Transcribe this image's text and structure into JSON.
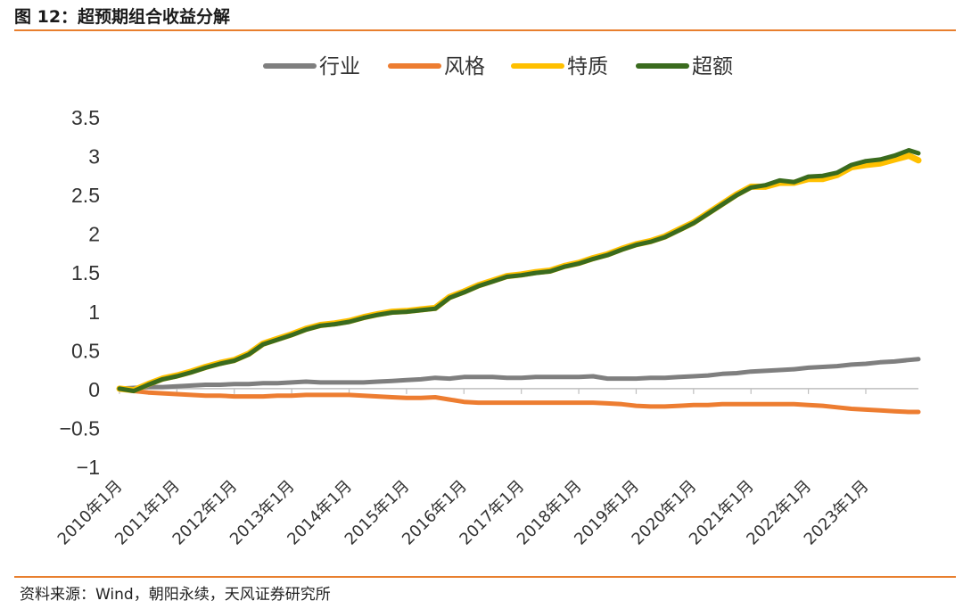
{
  "figure": {
    "title": "图 12：超预期组合收益分解",
    "source": "资料来源：Wind，朝阳永续，天风证券研究所"
  },
  "colors": {
    "accent_rule": "#e87f2e",
    "行业": "#7f7f7f",
    "风格": "#ed7d31",
    "特质": "#ffc000",
    "超额": "#3a6b1e"
  },
  "chart_data": {
    "type": "line",
    "title": "",
    "xlabel": "",
    "ylabel": "",
    "ylim": [
      -1,
      3.5
    ],
    "yticks": [
      "3.5",
      "3",
      "2.5",
      "2",
      "1.5",
      "1",
      "0.5",
      "0",
      "−0.5",
      "−1"
    ],
    "ytick_values": [
      3.5,
      3,
      2.5,
      2,
      1.5,
      1,
      0.5,
      0,
      -0.5,
      -1
    ],
    "xtick_labels": [
      "2010年1月",
      "2011年1月",
      "2012年1月",
      "2013年1月",
      "2014年1月",
      "2015年1月",
      "2016年1月",
      "2017年1月",
      "2018年1月",
      "2019年1月",
      "2020年1月",
      "2021年1月",
      "2022年1月",
      "2023年1月"
    ],
    "xrange": [
      "2010-01",
      "2023-12"
    ],
    "legend_position": "top",
    "grid": false,
    "x": [
      "2010-01",
      "2010-04",
      "2010-07",
      "2010-10",
      "2011-01",
      "2011-04",
      "2011-07",
      "2011-10",
      "2012-01",
      "2012-04",
      "2012-07",
      "2012-10",
      "2013-01",
      "2013-04",
      "2013-07",
      "2013-10",
      "2014-01",
      "2014-04",
      "2014-07",
      "2014-10",
      "2015-01",
      "2015-04",
      "2015-07",
      "2015-10",
      "2016-01",
      "2016-04",
      "2016-07",
      "2016-10",
      "2017-01",
      "2017-04",
      "2017-07",
      "2017-10",
      "2018-01",
      "2018-04",
      "2018-07",
      "2018-10",
      "2019-01",
      "2019-04",
      "2019-07",
      "2019-10",
      "2020-01",
      "2020-04",
      "2020-07",
      "2020-10",
      "2021-01",
      "2021-04",
      "2021-07",
      "2021-10",
      "2022-01",
      "2022-04",
      "2022-07",
      "2022-10",
      "2023-01",
      "2023-04",
      "2023-07",
      "2023-10",
      "2023-12"
    ],
    "series": [
      {
        "name": "行业",
        "values": [
          0,
          0.01,
          0.02,
          0.02,
          0.03,
          0.04,
          0.05,
          0.05,
          0.06,
          0.06,
          0.07,
          0.07,
          0.08,
          0.09,
          0.08,
          0.08,
          0.08,
          0.08,
          0.09,
          0.1,
          0.11,
          0.12,
          0.14,
          0.13,
          0.15,
          0.15,
          0.15,
          0.14,
          0.14,
          0.15,
          0.15,
          0.15,
          0.15,
          0.16,
          0.13,
          0.13,
          0.13,
          0.14,
          0.14,
          0.15,
          0.16,
          0.17,
          0.19,
          0.2,
          0.22,
          0.23,
          0.24,
          0.25,
          0.27,
          0.28,
          0.29,
          0.31,
          0.32,
          0.34,
          0.35,
          0.37,
          0.38
        ]
      },
      {
        "name": "风格",
        "values": [
          0,
          -0.03,
          -0.05,
          -0.06,
          -0.07,
          -0.08,
          -0.09,
          -0.09,
          -0.1,
          -0.1,
          -0.1,
          -0.09,
          -0.09,
          -0.08,
          -0.08,
          -0.08,
          -0.08,
          -0.09,
          -0.1,
          -0.11,
          -0.12,
          -0.12,
          -0.11,
          -0.14,
          -0.17,
          -0.18,
          -0.18,
          -0.18,
          -0.18,
          -0.18,
          -0.18,
          -0.18,
          -0.18,
          -0.18,
          -0.19,
          -0.2,
          -0.22,
          -0.23,
          -0.23,
          -0.22,
          -0.21,
          -0.21,
          -0.2,
          -0.2,
          -0.2,
          -0.2,
          -0.2,
          -0.2,
          -0.21,
          -0.22,
          -0.24,
          -0.26,
          -0.27,
          -0.28,
          -0.29,
          -0.3,
          -0.3
        ]
      },
      {
        "name": "特质",
        "values": [
          0,
          -0.02,
          0.06,
          0.13,
          0.17,
          0.22,
          0.28,
          0.33,
          0.37,
          0.45,
          0.58,
          0.64,
          0.7,
          0.77,
          0.82,
          0.84,
          0.87,
          0.92,
          0.96,
          0.99,
          1.0,
          1.02,
          1.04,
          1.18,
          1.25,
          1.33,
          1.39,
          1.45,
          1.47,
          1.5,
          1.52,
          1.58,
          1.62,
          1.68,
          1.73,
          1.8,
          1.86,
          1.9,
          1.96,
          2.05,
          2.14,
          2.26,
          2.38,
          2.5,
          2.6,
          2.6,
          2.65,
          2.65,
          2.7,
          2.7,
          2.75,
          2.85,
          2.88,
          2.9,
          2.95,
          3.0,
          2.94
        ]
      },
      {
        "name": "超额",
        "values": [
          0,
          -0.03,
          0.05,
          0.12,
          0.16,
          0.21,
          0.27,
          0.32,
          0.36,
          0.44,
          0.57,
          0.63,
          0.69,
          0.76,
          0.81,
          0.83,
          0.86,
          0.91,
          0.95,
          0.98,
          0.99,
          1.01,
          1.03,
          1.17,
          1.24,
          1.32,
          1.38,
          1.44,
          1.46,
          1.49,
          1.51,
          1.57,
          1.61,
          1.67,
          1.72,
          1.79,
          1.85,
          1.89,
          1.95,
          2.04,
          2.13,
          2.25,
          2.37,
          2.49,
          2.59,
          2.62,
          2.68,
          2.66,
          2.73,
          2.74,
          2.78,
          2.88,
          2.93,
          2.95,
          3.0,
          3.07,
          3.03
        ]
      }
    ]
  }
}
